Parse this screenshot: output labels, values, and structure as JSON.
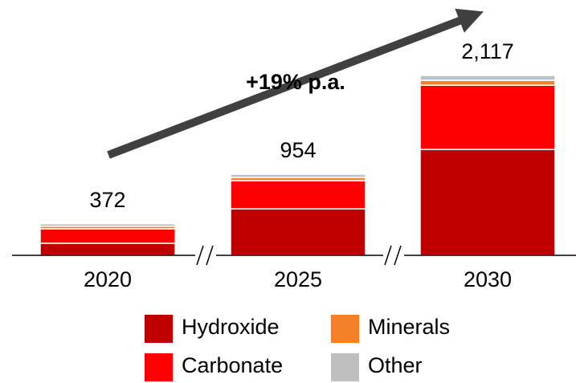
{
  "chart_data": {
    "type": "stacked_bar",
    "annotation": "+19% p.a.",
    "categories": [
      "2020",
      "2025",
      "2030"
    ],
    "series": [
      {
        "name": "Hydroxide",
        "color": "#c00000",
        "values": [
          142,
          548,
          1247
        ]
      },
      {
        "name": "Carbonate",
        "color": "#ff0000",
        "values": [
          170,
          331,
          756
        ]
      },
      {
        "name": "Minerals",
        "color": "#f4802a",
        "values": [
          30,
          38,
          57
        ]
      },
      {
        "name": "Other",
        "color": "#bfbfbf",
        "values": [
          30,
          37,
          57
        ]
      }
    ],
    "totals": [
      372,
      954,
      2117
    ],
    "total_labels": [
      "372",
      "954",
      "2,117"
    ]
  }
}
